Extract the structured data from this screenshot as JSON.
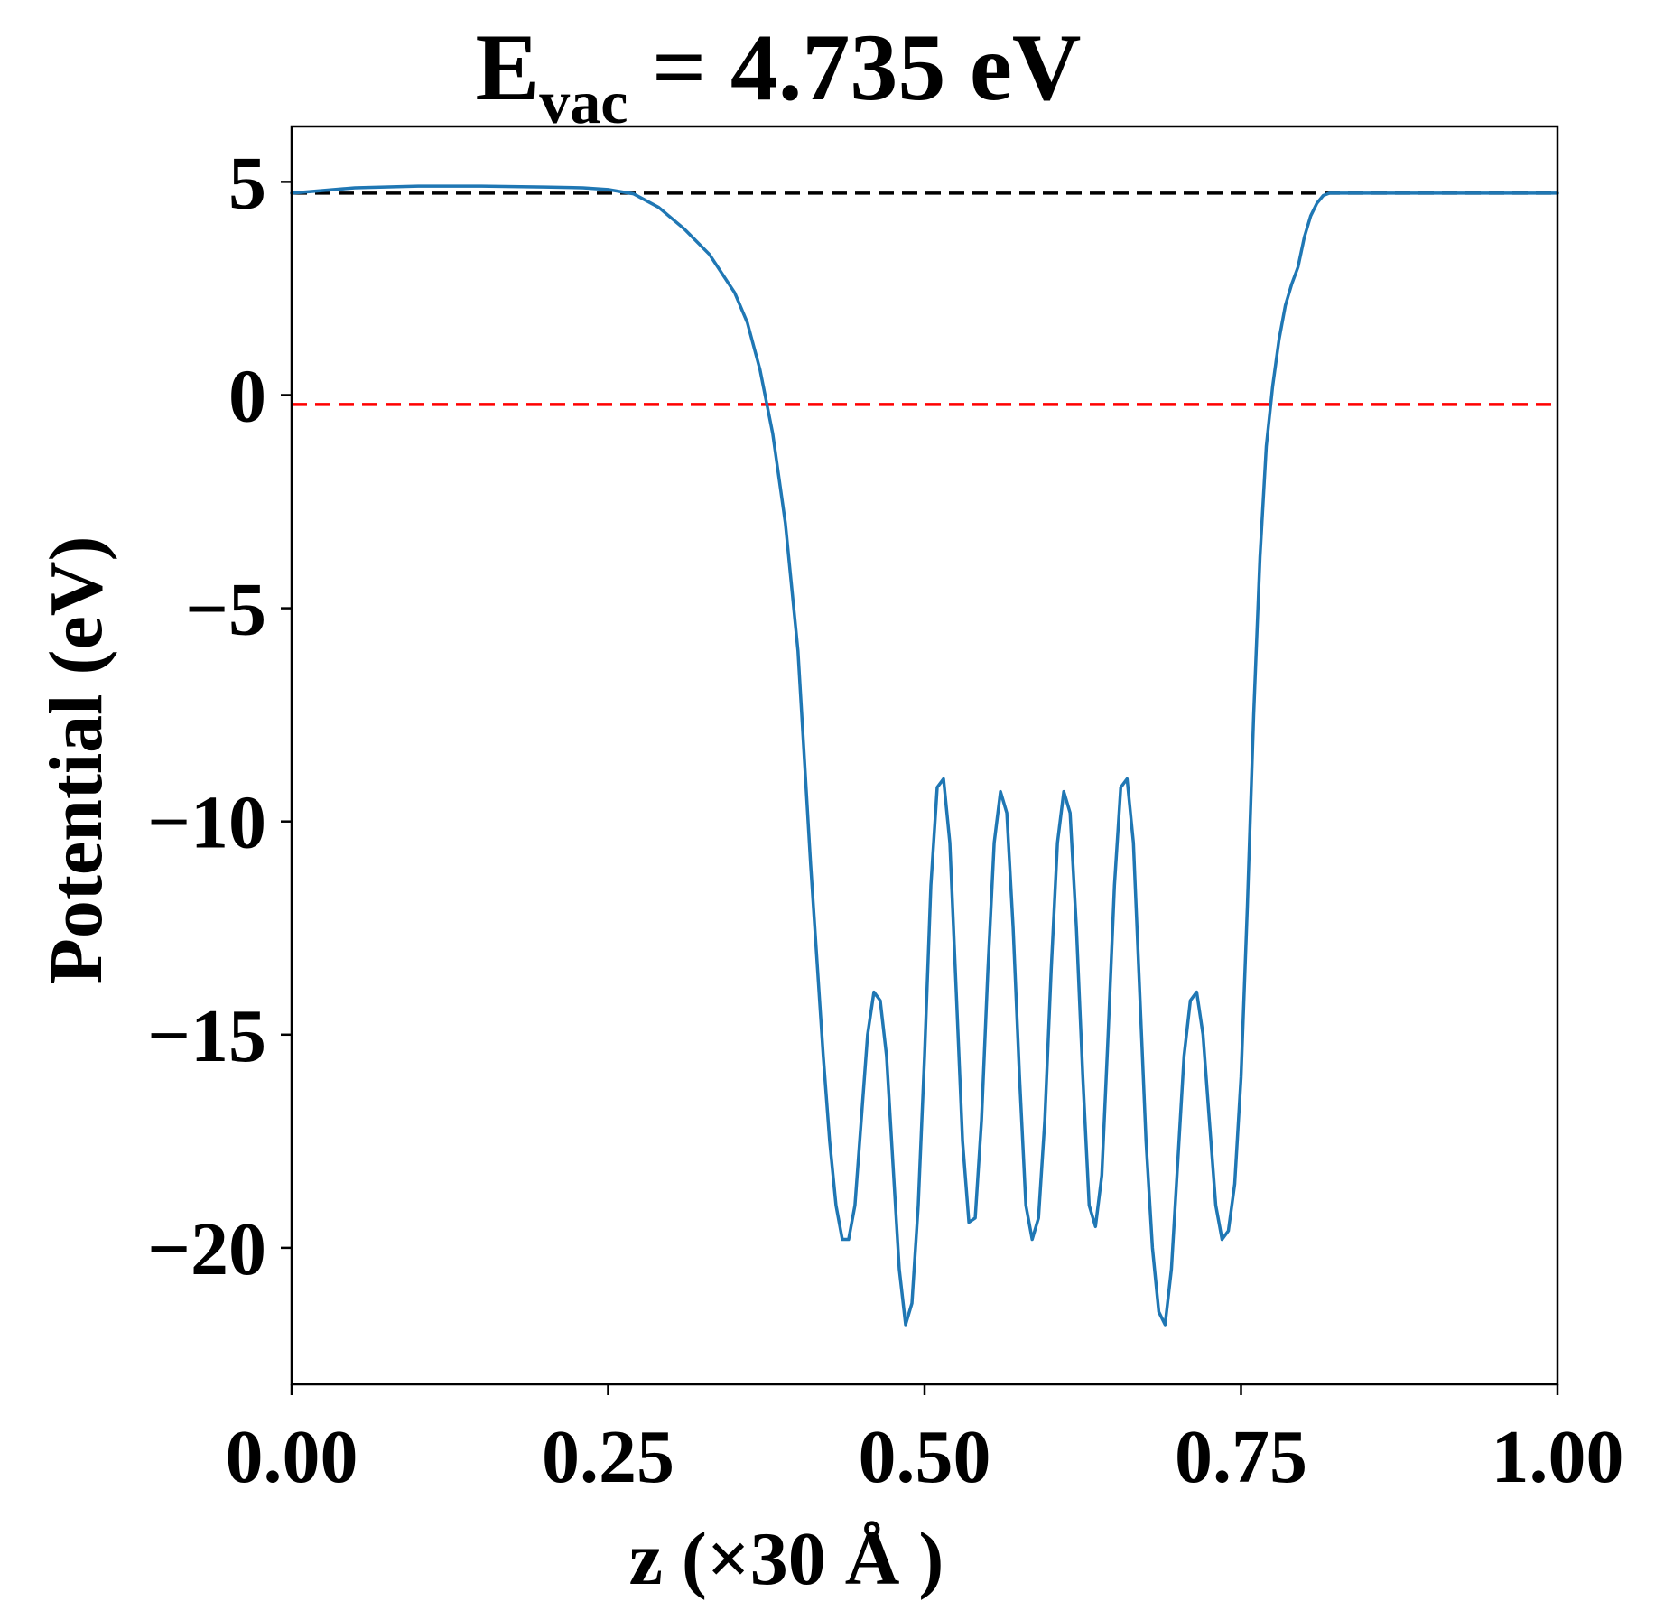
{
  "chart_data": {
    "type": "line",
    "title": {
      "main": "E",
      "subscript": "vac",
      "rest": " = 4.735 eV"
    },
    "xlabel": "z (×30 Å )",
    "ylabel": "Potential (eV)",
    "xlim": [
      0.0,
      1.0
    ],
    "ylim": [
      -23.2,
      6.3
    ],
    "x_ticks": [
      {
        "value": 0.0,
        "label": "0.00"
      },
      {
        "value": 0.25,
        "label": "0.25"
      },
      {
        "value": 0.5,
        "label": "0.50"
      },
      {
        "value": 0.75,
        "label": "0.75"
      },
      {
        "value": 1.0,
        "label": "1.00"
      }
    ],
    "y_ticks": [
      {
        "value": 5,
        "label": "5"
      },
      {
        "value": 0,
        "label": "0"
      },
      {
        "value": -5,
        "label": "−5"
      },
      {
        "value": -10,
        "label": "−10"
      },
      {
        "value": -15,
        "label": "−15"
      },
      {
        "value": -20,
        "label": "−20"
      }
    ],
    "grid": false,
    "reference_lines": [
      {
        "y": 4.735,
        "color": "#000000",
        "style": "dashed"
      },
      {
        "y": -0.22,
        "color": "#ff0000",
        "style": "dashed"
      }
    ],
    "series": [
      {
        "color": "#1f77b4",
        "x": [
          0.0,
          0.05,
          0.1,
          0.15,
          0.2,
          0.23,
          0.25,
          0.27,
          0.29,
          0.31,
          0.33,
          0.35,
          0.36,
          0.37,
          0.38,
          0.39,
          0.4,
          0.41,
          0.42,
          0.425,
          0.43,
          0.435,
          0.44,
          0.445,
          0.45,
          0.455,
          0.46,
          0.465,
          0.47,
          0.475,
          0.48,
          0.485,
          0.49,
          0.495,
          0.5,
          0.505,
          0.51,
          0.515,
          0.52,
          0.525,
          0.53,
          0.535,
          0.54,
          0.545,
          0.55,
          0.555,
          0.56,
          0.565,
          0.57,
          0.575,
          0.58,
          0.585,
          0.59,
          0.595,
          0.6,
          0.605,
          0.61,
          0.615,
          0.62,
          0.625,
          0.63,
          0.635,
          0.64,
          0.645,
          0.65,
          0.655,
          0.66,
          0.665,
          0.67,
          0.675,
          0.68,
          0.685,
          0.69,
          0.695,
          0.7,
          0.705,
          0.71,
          0.715,
          0.72,
          0.725,
          0.73,
          0.735,
          0.74,
          0.745,
          0.75,
          0.755,
          0.76,
          0.765,
          0.77,
          0.775,
          0.78,
          0.785,
          0.79,
          0.795,
          0.8,
          0.805,
          0.81,
          0.815,
          0.82,
          0.825,
          0.83,
          0.835,
          0.84,
          0.845,
          0.85,
          0.855,
          0.86,
          0.87,
          0.88,
          0.89,
          0.9,
          0.92,
          0.94,
          0.96,
          0.98,
          1.0
        ],
        "y": [
          4.735,
          4.86,
          4.9,
          4.9,
          4.88,
          4.86,
          4.82,
          4.72,
          4.4,
          3.9,
          3.3,
          2.4,
          1.7,
          0.6,
          -0.9,
          -3.0,
          -6.0,
          -11.0,
          -15.5,
          -17.5,
          -19.0,
          -19.8,
          -19.8,
          -19.0,
          -17.0,
          -15.0,
          -14.0,
          -14.2,
          -15.5,
          -18.0,
          -20.5,
          -21.8,
          -21.3,
          -19.0,
          -15.5,
          -11.5,
          -9.2,
          -9.0,
          -10.5,
          -14.0,
          -17.5,
          -19.4,
          -19.3,
          -17.0,
          -13.5,
          -10.5,
          -9.3,
          -9.8,
          -12.5,
          -16.0,
          -19.0,
          -19.8,
          -19.3,
          -17.0,
          -13.5,
          -10.5,
          -9.3,
          -9.8,
          -12.5,
          -16.0,
          -19.0,
          -19.5,
          -18.3,
          -15.0,
          -11.5,
          -9.2,
          -9.0,
          -10.5,
          -14.0,
          -17.5,
          -20.0,
          -21.5,
          -21.8,
          -20.5,
          -18.0,
          -15.5,
          -14.2,
          -14.0,
          -15.0,
          -17.0,
          -19.0,
          -19.8,
          -19.6,
          -18.5,
          -16.0,
          -12.0,
          -7.5,
          -3.8,
          -1.2,
          0.2,
          1.3,
          2.1,
          2.6,
          3.0,
          3.7,
          4.2,
          4.5,
          4.68,
          4.735,
          4.735,
          4.735,
          4.735,
          4.735,
          4.735,
          4.735,
          4.735,
          4.735,
          4.735,
          4.735,
          4.735,
          4.735,
          4.735,
          4.735,
          4.735,
          4.735,
          4.735
        ]
      }
    ]
  }
}
